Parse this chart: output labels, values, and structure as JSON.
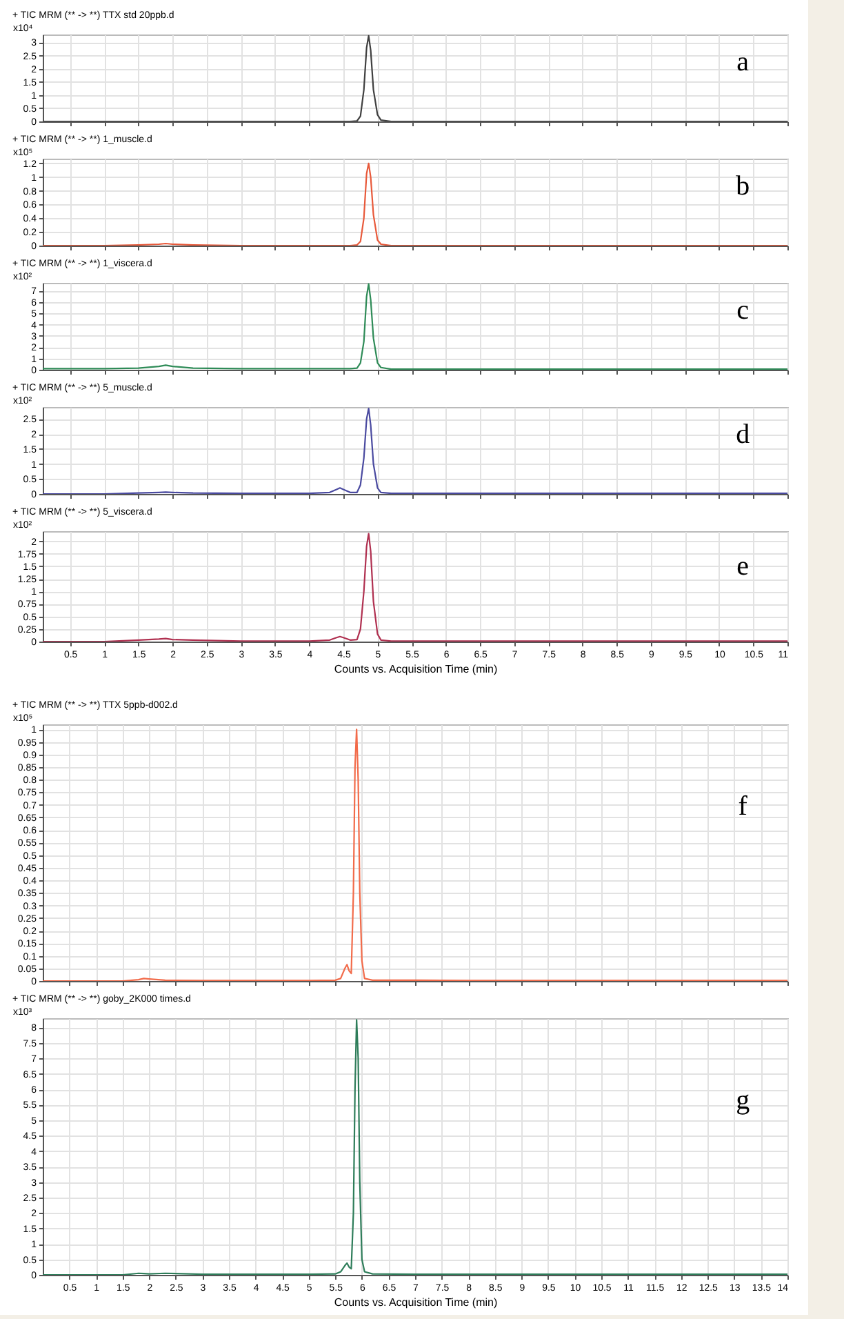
{
  "chart_data": [
    {
      "type": "line",
      "title": "+ TIC MRM (** -> **) TTX std 20ppb.d",
      "ylabel": "x10⁴",
      "annotations": [
        "a"
      ],
      "grid": true,
      "tick_labels": "y",
      "xlim": [
        0.1,
        11
      ],
      "xticks": [
        0.5,
        1,
        1.5,
        2,
        2.5,
        3,
        3.5,
        4,
        4.5,
        5,
        5.5,
        6,
        6.5,
        7,
        7.5,
        8,
        8.5,
        9,
        9.5,
        10,
        10.5,
        11
      ],
      "ylim": [
        0,
        3.3
      ],
      "yticks": [
        0,
        0.5,
        1,
        1.5,
        2,
        2.5,
        3
      ],
      "x": [
        0.1,
        0.5,
        1,
        1.5,
        1.8,
        1.9,
        2.0,
        2.3,
        3,
        4,
        4.3,
        4.4,
        4.45,
        4.5,
        4.6,
        4.7,
        4.75,
        4.8,
        4.84,
        4.87,
        4.9,
        4.94,
        5.0,
        5.05,
        5.2,
        6,
        7,
        8,
        9,
        10,
        11
      ],
      "series": [
        {
          "color": "#404040",
          "values": [
            0,
            0,
            0,
            0,
            0,
            0,
            0,
            0,
            0,
            0,
            0,
            0,
            0,
            0,
            0,
            0.02,
            0.2,
            1.2,
            2.8,
            3.25,
            2.7,
            1.2,
            0.25,
            0.05,
            0,
            0,
            0,
            0,
            0,
            0,
            0
          ]
        }
      ]
    },
    {
      "type": "line",
      "title": "+ TIC MRM (** -> **) 1_muscle.d",
      "ylabel": "x10⁵",
      "annotations": [
        "b"
      ],
      "grid": true,
      "tick_labels": "y",
      "xlim": [
        0.1,
        11
      ],
      "xticks": [
        0.5,
        1,
        1.5,
        2,
        2.5,
        3,
        3.5,
        4,
        4.5,
        5,
        5.5,
        6,
        6.5,
        7,
        7.5,
        8,
        8.5,
        9,
        9.5,
        10,
        10.5,
        11
      ],
      "ylim": [
        0,
        1.27
      ],
      "yticks": [
        0,
        0.2,
        0.4,
        0.6,
        0.8,
        1,
        1.2
      ],
      "x": [
        0.1,
        0.5,
        1,
        1.5,
        1.8,
        1.9,
        2.0,
        2.3,
        3,
        4,
        4.3,
        4.4,
        4.45,
        4.5,
        4.6,
        4.7,
        4.75,
        4.8,
        4.84,
        4.87,
        4.9,
        4.94,
        5.0,
        5.05,
        5.2,
        6,
        7,
        8,
        9,
        10,
        11
      ],
      "series": [
        {
          "color": "#e8593a",
          "values": [
            0,
            0,
            0,
            0.01,
            0.02,
            0.03,
            0.02,
            0.01,
            0,
            0,
            0,
            0,
            0,
            0,
            0,
            0.01,
            0.06,
            0.4,
            1.05,
            1.2,
            1.0,
            0.45,
            0.08,
            0.02,
            0,
            0,
            0,
            0,
            0,
            0,
            0
          ]
        }
      ]
    },
    {
      "type": "line",
      "title": "+ TIC MRM (** -> **) 1_viscera.d",
      "ylabel": "x10²",
      "annotations": [
        "c"
      ],
      "grid": true,
      "tick_labels": "y",
      "xlim": [
        0.1,
        11
      ],
      "xticks": [
        0.5,
        1,
        1.5,
        2,
        2.5,
        3,
        3.5,
        4,
        4.5,
        5,
        5.5,
        6,
        6.5,
        7,
        7.5,
        8,
        8.5,
        9,
        9.5,
        10,
        10.5,
        11
      ],
      "ylim": [
        0,
        7.7
      ],
      "yticks": [
        0,
        1,
        2,
        3,
        4,
        5,
        6,
        7
      ],
      "x": [
        0.1,
        0.5,
        1,
        1.5,
        1.8,
        1.9,
        2.0,
        2.3,
        3,
        4,
        4.3,
        4.4,
        4.45,
        4.5,
        4.6,
        4.7,
        4.75,
        4.8,
        4.84,
        4.87,
        4.9,
        4.94,
        5.0,
        5.05,
        5.2,
        6,
        7,
        8,
        9,
        10,
        11
      ],
      "series": [
        {
          "color": "#2e8b57",
          "values": [
            0.1,
            0.1,
            0.1,
            0.15,
            0.3,
            0.4,
            0.3,
            0.15,
            0.1,
            0.1,
            0.1,
            0.1,
            0.1,
            0.1,
            0.1,
            0.15,
            0.6,
            2.5,
            6.5,
            7.6,
            6.2,
            2.8,
            0.6,
            0.2,
            0.05,
            0.05,
            0.05,
            0.05,
            0.05,
            0.05,
            0.05
          ]
        }
      ]
    },
    {
      "type": "line",
      "title": "+ TIC MRM (** -> **) 5_muscle.d",
      "ylabel": "x10²",
      "annotations": [
        "d"
      ],
      "grid": true,
      "tick_labels": "y",
      "xlim": [
        0.1,
        11
      ],
      "xticks": [
        0.5,
        1,
        1.5,
        2,
        2.5,
        3,
        3.5,
        4,
        4.5,
        5,
        5.5,
        6,
        6.5,
        7,
        7.5,
        8,
        8.5,
        9,
        9.5,
        10,
        10.5,
        11
      ],
      "ylim": [
        0,
        2.9
      ],
      "yticks": [
        0,
        0.5,
        1,
        1.5,
        2,
        2.5
      ],
      "x": [
        0.1,
        0.5,
        1,
        1.5,
        1.8,
        1.9,
        2.0,
        2.3,
        3,
        4,
        4.3,
        4.4,
        4.45,
        4.5,
        4.6,
        4.7,
        4.75,
        4.8,
        4.84,
        4.87,
        4.9,
        4.94,
        5.0,
        5.05,
        5.2,
        6,
        7,
        8,
        9,
        10,
        11
      ],
      "series": [
        {
          "color": "#4a4aa0",
          "values": [
            0,
            0,
            0,
            0.03,
            0.05,
            0.06,
            0.05,
            0.03,
            0.02,
            0.02,
            0.05,
            0.15,
            0.2,
            0.15,
            0.05,
            0.05,
            0.3,
            1.2,
            2.5,
            2.85,
            2.3,
            1.0,
            0.2,
            0.05,
            0.02,
            0.02,
            0.02,
            0.02,
            0.02,
            0.02,
            0.02
          ]
        }
      ]
    },
    {
      "type": "line",
      "title": "+ TIC MRM (** -> **) 5_viscera.d",
      "ylabel": "x10²",
      "xlabel": "Counts vs. Acquisition Time (min)",
      "annotations": [
        "e"
      ],
      "grid": true,
      "xlim": [
        0.1,
        11
      ],
      "xticks": [
        0.5,
        1,
        1.5,
        2,
        2.5,
        3,
        3.5,
        4,
        4.5,
        5,
        5.5,
        6,
        6.5,
        7,
        7.5,
        8,
        8.5,
        9,
        9.5,
        10,
        10.5,
        11
      ],
      "ylim": [
        0,
        2.2
      ],
      "yticks": [
        0,
        0.25,
        0.5,
        0.75,
        1,
        1.25,
        1.5,
        1.75,
        2
      ],
      "x": [
        0.1,
        0.5,
        1,
        1.5,
        1.8,
        1.9,
        2.0,
        2.3,
        3,
        4,
        4.3,
        4.4,
        4.45,
        4.5,
        4.6,
        4.7,
        4.75,
        4.8,
        4.84,
        4.87,
        4.9,
        4.94,
        5.0,
        5.05,
        5.2,
        6,
        7,
        8,
        9,
        10,
        11
      ],
      "series": [
        {
          "color": "#b03050",
          "values": [
            0,
            0,
            0,
            0.03,
            0.05,
            0.06,
            0.04,
            0.03,
            0.01,
            0.01,
            0.03,
            0.08,
            0.1,
            0.08,
            0.03,
            0.04,
            0.25,
            1.0,
            1.9,
            2.15,
            1.8,
            0.8,
            0.15,
            0.03,
            0.01,
            0.01,
            0.01,
            0.01,
            0.01,
            0.01,
            0.01
          ]
        }
      ]
    },
    {
      "type": "line",
      "title": "+ TIC MRM (** -> **) TTX 5ppb-d002.d",
      "ylabel": "x10⁵",
      "annotations": [
        "f"
      ],
      "grid": true,
      "tick_labels": "y",
      "xlim": [
        0,
        14
      ],
      "xticks": [
        0.5,
        1,
        1.5,
        2,
        2.5,
        3,
        3.5,
        4,
        4.5,
        5,
        5.5,
        6,
        6.5,
        7,
        7.5,
        8,
        8.5,
        9,
        9.5,
        10,
        10.5,
        11,
        11.5,
        12,
        12.5,
        13,
        13.5,
        14
      ],
      "ylim": [
        0,
        1.02
      ],
      "yticks": [
        0,
        0.05,
        0.1,
        0.15,
        0.2,
        0.25,
        0.3,
        0.35,
        0.4,
        0.45,
        0.5,
        0.55,
        0.6,
        0.65,
        0.7,
        0.75,
        0.8,
        0.85,
        0.9,
        0.95,
        1
      ],
      "x": [
        0,
        1,
        1.5,
        1.8,
        1.9,
        2.0,
        2.3,
        3,
        4,
        5,
        5.5,
        5.6,
        5.68,
        5.72,
        5.76,
        5.8,
        5.84,
        5.87,
        5.9,
        5.93,
        5.96,
        6.0,
        6.05,
        6.2,
        7,
        8,
        9,
        10,
        11,
        12,
        13,
        14
      ],
      "series": [
        {
          "color": "#f26b4a",
          "values": [
            0,
            0,
            0,
            0.005,
            0.01,
            0.008,
            0.003,
            0.002,
            0.002,
            0.002,
            0.003,
            0.01,
            0.05,
            0.065,
            0.04,
            0.03,
            0.35,
            0.85,
            1.0,
            0.8,
            0.35,
            0.08,
            0.01,
            0.003,
            0.003,
            0.002,
            0.002,
            0.002,
            0.002,
            0.002,
            0.002,
            0.002
          ]
        }
      ]
    },
    {
      "type": "line",
      "title": "+ TIC MRM (** -> **) goby_2K000 times.d",
      "ylabel": "x10³",
      "xlabel": "Counts vs. Acquisition Time (min)",
      "annotations": [
        "g"
      ],
      "grid": true,
      "xlim": [
        0,
        14
      ],
      "xticks": [
        0.5,
        1,
        1.5,
        2,
        2.5,
        3,
        3.5,
        4,
        4.5,
        5,
        5.5,
        6,
        6.5,
        7,
        7.5,
        8,
        8.5,
        9,
        9.5,
        10,
        10.5,
        11,
        11.5,
        12,
        12.5,
        13,
        13.5,
        14
      ],
      "ylim": [
        0,
        8.3
      ],
      "yticks": [
        0,
        0.5,
        1,
        1.5,
        2,
        2.5,
        3,
        3.5,
        4,
        4.5,
        5,
        5.5,
        6,
        6.5,
        7,
        7.5,
        8
      ],
      "x": [
        0,
        1,
        1.5,
        1.8,
        1.9,
        2.0,
        2.3,
        3,
        4,
        5,
        5.5,
        5.6,
        5.68,
        5.72,
        5.76,
        5.8,
        5.84,
        5.87,
        5.9,
        5.93,
        5.96,
        6.0,
        6.05,
        6.2,
        7,
        8,
        9,
        10,
        11,
        12,
        13,
        14
      ],
      "series": [
        {
          "color": "#2e7d5a",
          "values": [
            0,
            0,
            0,
            0.05,
            0.04,
            0.03,
            0.05,
            0.02,
            0.02,
            0.02,
            0.03,
            0.1,
            0.3,
            0.38,
            0.25,
            0.2,
            2,
            6,
            8.25,
            7,
            3,
            0.5,
            0.1,
            0.03,
            0.02,
            0.02,
            0.02,
            0.02,
            0.02,
            0.02,
            0.02,
            0.02
          ]
        }
      ]
    }
  ]
}
